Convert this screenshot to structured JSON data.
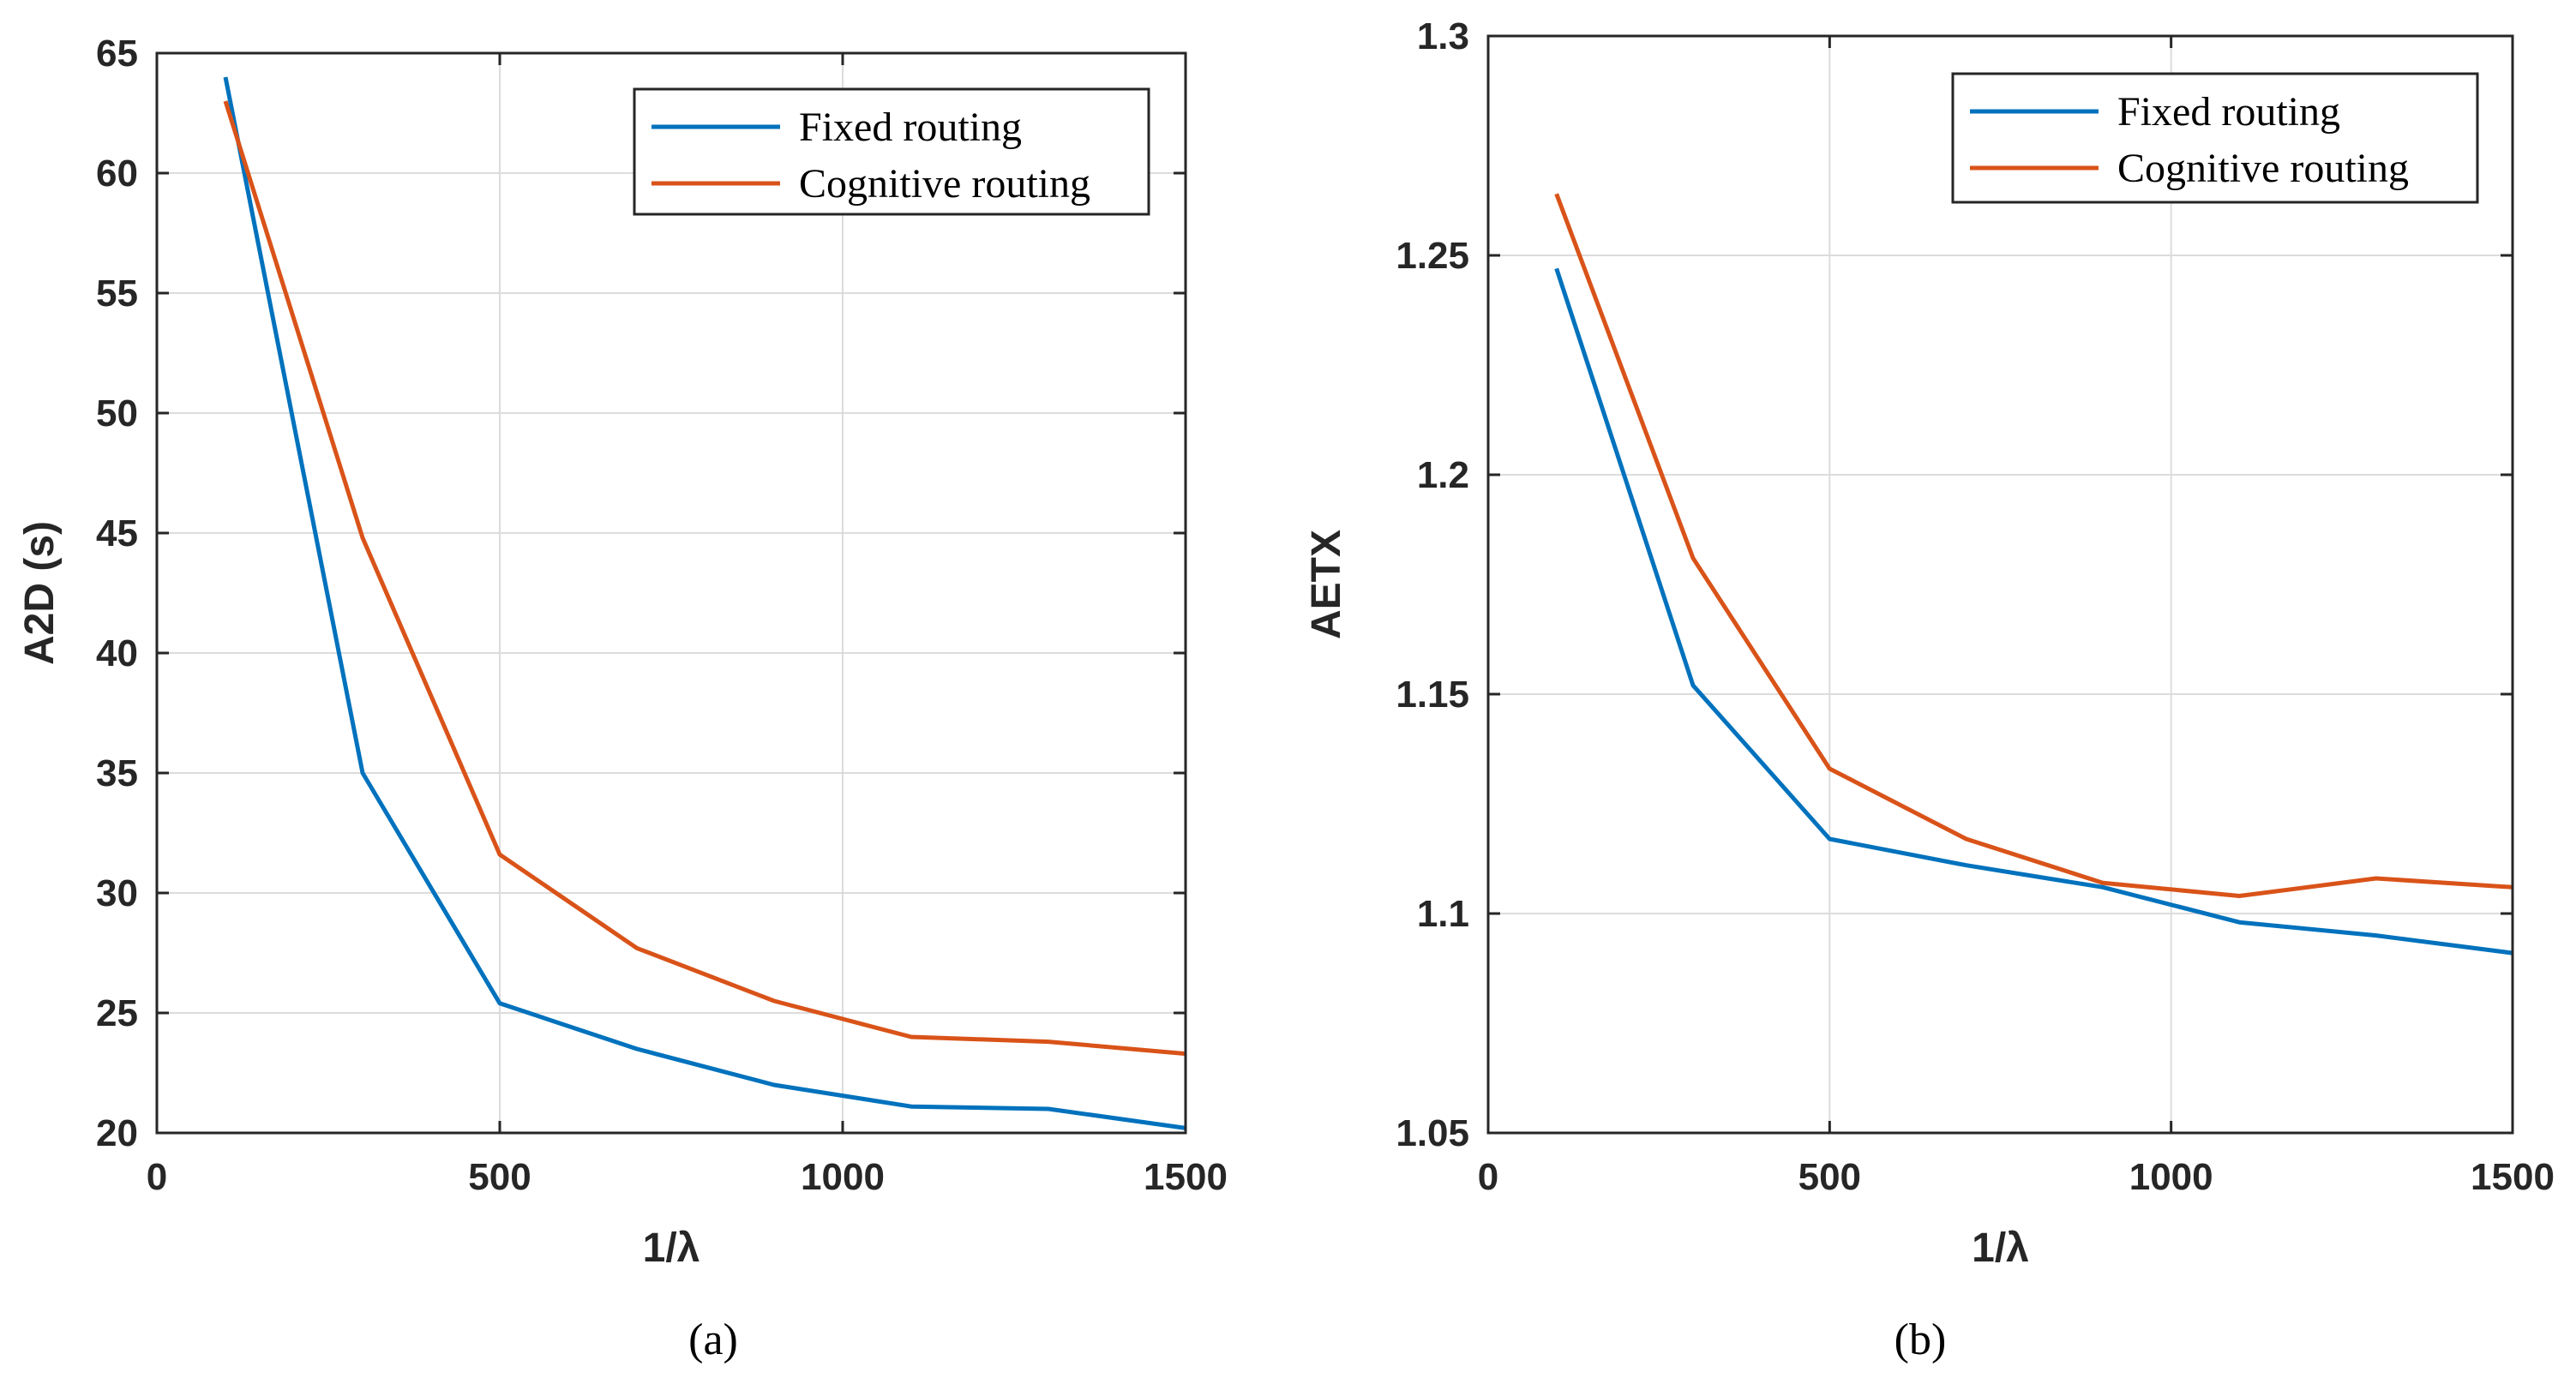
{
  "chart_data": [
    {
      "type": "line",
      "caption": "(a)",
      "title": "",
      "xlabel": "1/λ",
      "ylabel": "A2D (s)",
      "xlim": [
        0,
        1500
      ],
      "ylim": [
        20,
        65
      ],
      "xticks": [
        0,
        500,
        1000,
        1500
      ],
      "yticks": [
        20,
        25,
        30,
        35,
        40,
        45,
        50,
        55,
        60,
        65
      ],
      "grid": true,
      "legend_position": "top-right",
      "x": [
        100,
        300,
        500,
        700,
        900,
        1100,
        1300,
        1500
      ],
      "series": [
        {
          "name": "Fixed routing",
          "color": "#0072BD",
          "values": [
            64.0,
            35.0,
            25.4,
            23.5,
            22.0,
            21.1,
            21.0,
            20.2
          ]
        },
        {
          "name": "Cognitive routing",
          "color": "#D95319",
          "values": [
            63.0,
            44.8,
            31.6,
            27.7,
            25.5,
            24.0,
            23.8,
            23.3
          ]
        }
      ]
    },
    {
      "type": "line",
      "caption": "(b)",
      "title": "",
      "xlabel": "1/λ",
      "ylabel": "AETX",
      "xlim": [
        0,
        1500
      ],
      "ylim": [
        1.05,
        1.3
      ],
      "xticks": [
        0,
        500,
        1000,
        1500
      ],
      "yticks": [
        1.05,
        1.1,
        1.15,
        1.2,
        1.25,
        1.3
      ],
      "grid": true,
      "legend_position": "top-right",
      "x": [
        100,
        300,
        500,
        700,
        900,
        1100,
        1300,
        1500
      ],
      "series": [
        {
          "name": "Fixed routing",
          "color": "#0072BD",
          "values": [
            1.247,
            1.152,
            1.117,
            1.111,
            1.106,
            1.098,
            1.095,
            1.091
          ]
        },
        {
          "name": "Cognitive routing",
          "color": "#D95319",
          "values": [
            1.264,
            1.181,
            1.133,
            1.117,
            1.107,
            1.104,
            1.108,
            1.106
          ]
        }
      ]
    }
  ]
}
